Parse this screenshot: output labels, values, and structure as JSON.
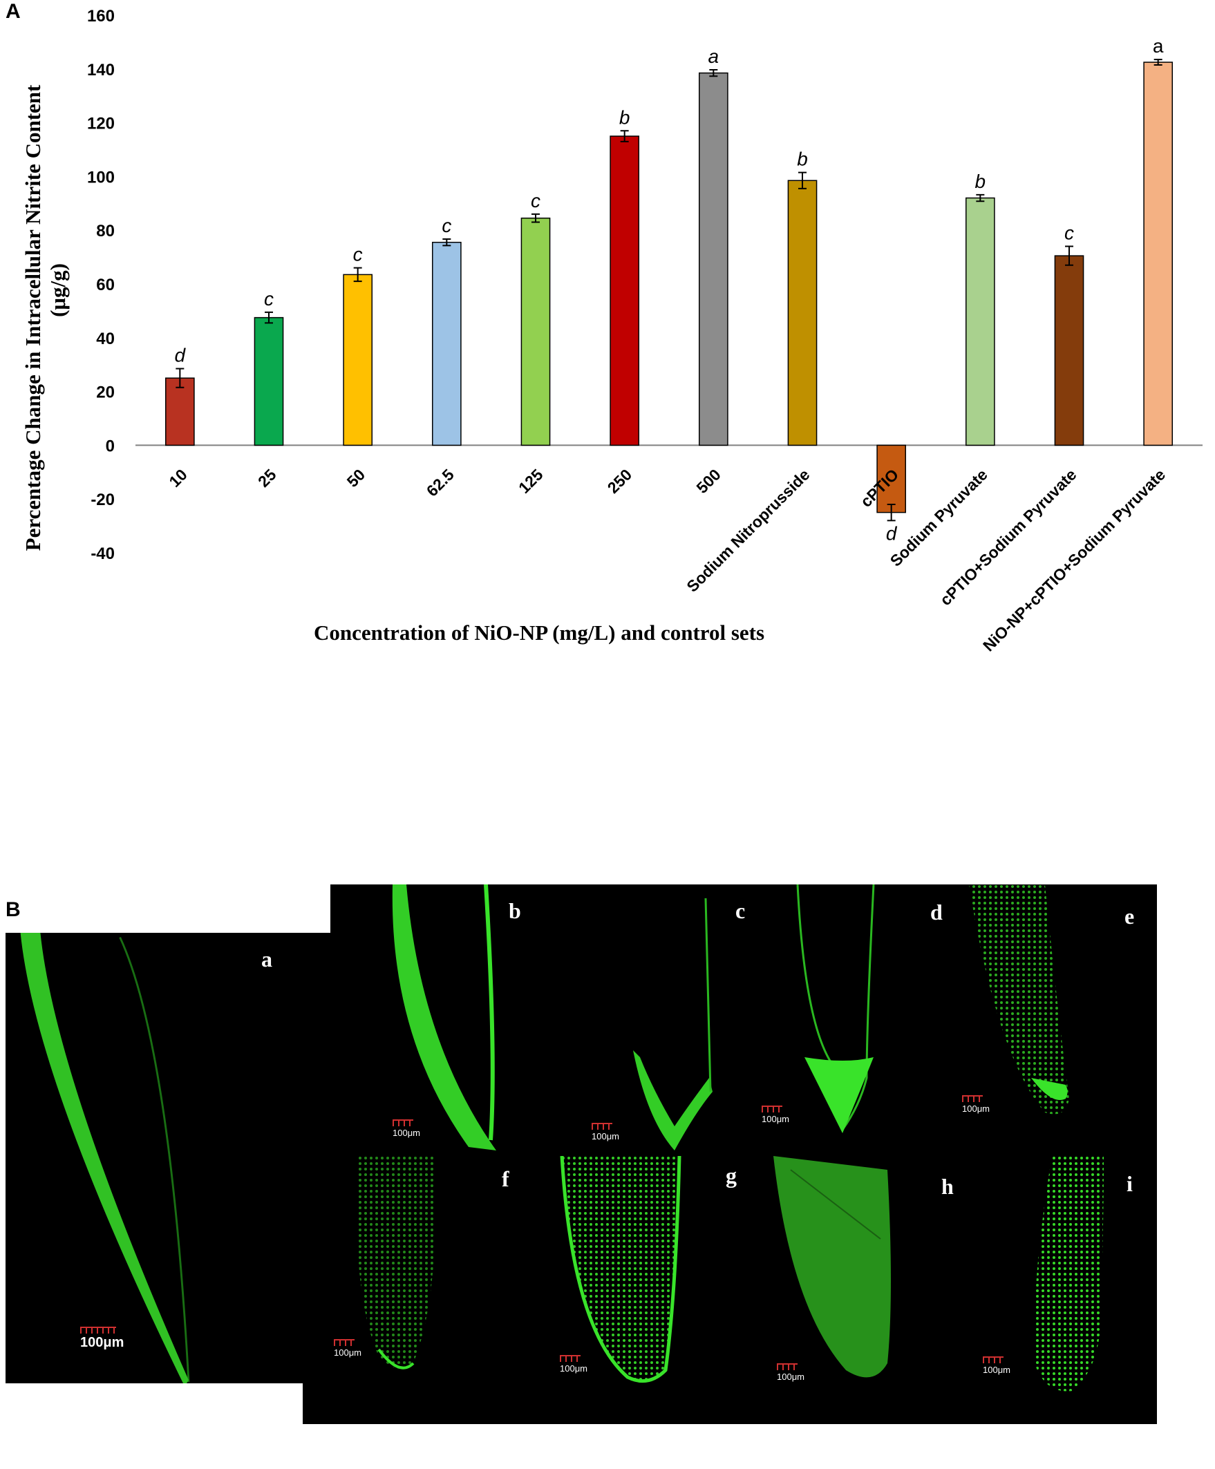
{
  "panel_a": {
    "letter": "A"
  },
  "panel_b": {
    "letter": "B"
  },
  "chart_data": {
    "type": "bar",
    "title": "",
    "xlabel": "Concentration of NiO-NP (mg/L) and control sets",
    "ylabel_line1": "Percentage Change in Intracellular Nitrite Content",
    "ylabel_line2": "(μg/g)",
    "ylim": [
      -40,
      160
    ],
    "yticks": [
      -40,
      -20,
      0,
      20,
      40,
      60,
      80,
      100,
      120,
      140,
      160
    ],
    "grid": false,
    "legend": "none",
    "categories": [
      "10",
      "25",
      "50",
      "62.5",
      "125",
      "250",
      "500",
      "Sodium Nitroprusside",
      "cPTIO",
      "Sodium Pyruvate",
      "cPTIO+Sodium Pyruvate",
      "NiO-NP+cPTIO+Sodium Pyruvate"
    ],
    "values": [
      25,
      47.5,
      63.5,
      75.5,
      84.5,
      115,
      138.5,
      98.5,
      -25,
      92,
      70.5,
      142.5
    ],
    "errors": [
      3.5,
      2,
      2.5,
      1.2,
      1.5,
      2,
      1.2,
      3,
      3,
      1.2,
      3.5,
      1
    ],
    "significance": [
      "d",
      "c",
      "c",
      "c",
      "c",
      "b",
      "a",
      "b",
      "d",
      "b",
      "c",
      "a"
    ],
    "colors": [
      "#b83221",
      "#0aa84e",
      "#ffc000",
      "#9dc3e6",
      "#92d050",
      "#c00000",
      "#8c8c8c",
      "#bf9000",
      "#c55a11",
      "#a9d18e",
      "#843c0c",
      "#f4b183"
    ]
  },
  "micrographs": {
    "labels": [
      "a",
      "b",
      "c",
      "d",
      "e",
      "f",
      "g",
      "h",
      "i"
    ],
    "scale_label": "100μm",
    "fluorescence_color": "#39e32a"
  }
}
